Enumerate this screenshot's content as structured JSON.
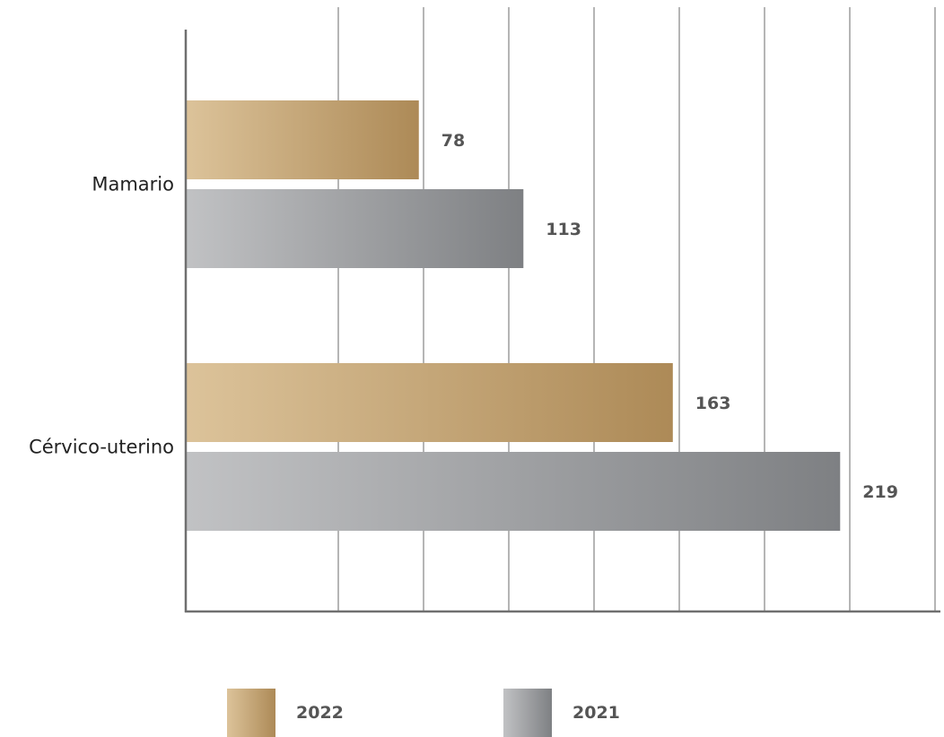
{
  "chart_data": {
    "type": "bar",
    "orientation": "horizontal",
    "title": "",
    "xlabel": "",
    "ylabel": "",
    "categories": [
      "Mamario",
      "Cérvico-uterino"
    ],
    "series": [
      {
        "name": "2022",
        "values": [
          78,
          163
        ],
        "color_start": "#dcc39a",
        "color_end": "#ad8a57"
      },
      {
        "name": "2021",
        "values": [
          113,
          219
        ],
        "color_start": "#c1c2c4",
        "color_end": "#7e8083"
      }
    ],
    "xlim": [
      0,
      250
    ],
    "grid": true,
    "tick_labels_shown": false,
    "legend_position": "bottom"
  }
}
